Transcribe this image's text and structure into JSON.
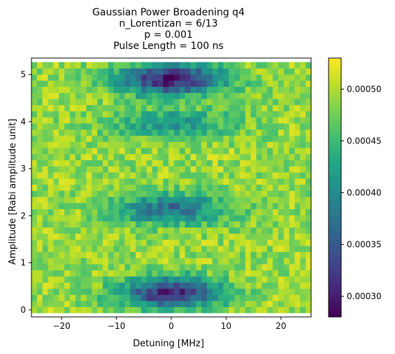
{
  "chart_data": {
    "type": "heatmap",
    "title_lines": [
      "Gaussian Power Broadening q4",
      "n_Lorentizan = 6/13",
      "p = 0.001",
      "Pulse Length = 100 ns"
    ],
    "xlabel": "Detuning [MHz]",
    "ylabel": "Amplitude [Rabi amplitude unit]",
    "xlim": [
      -25.5,
      25.5
    ],
    "ylim": [
      -0.15,
      5.35
    ],
    "x_ticks": [
      -20,
      -10,
      0,
      10,
      20
    ],
    "x_tick_labels": [
      "−20",
      "−10",
      "0",
      "10",
      "20"
    ],
    "y_ticks": [
      0,
      1,
      2,
      3,
      4,
      5
    ],
    "y_tick_labels": [
      "0",
      "1",
      "2",
      "3",
      "4",
      "5"
    ],
    "n_cols": 51,
    "n_rows": 41,
    "colormap": "viridis",
    "colorbar": {
      "vmin": 0.00028,
      "vmax": 0.00053,
      "ticks": [
        0.0003,
        0.00035,
        0.0004,
        0.00045,
        0.0005
      ],
      "tick_labels": [
        "0.00030",
        "0.00035",
        "0.00040",
        "0.00045",
        "0.00050"
      ]
    },
    "baseline": 0.00049,
    "dips": [
      {
        "amplitude": 0.37,
        "depth": 0.00019,
        "width_mhz": 9.0
      },
      {
        "amplitude": 2.15,
        "depth": 0.00012,
        "width_mhz": 10.0
      },
      {
        "amplitude": 3.95,
        "depth": 8e-05,
        "width_mhz": 11.0
      },
      {
        "amplitude": 4.9,
        "depth": 0.0002,
        "width_mhz": 9.5
      }
    ],
    "noise_amplitude": 3e-05,
    "grid": false
  }
}
